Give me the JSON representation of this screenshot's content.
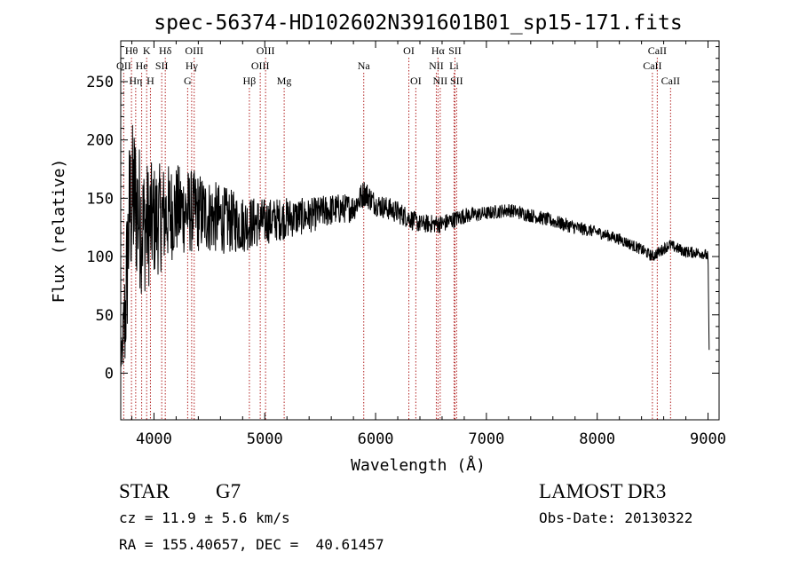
{
  "chart_data": {
    "type": "line",
    "title": "spec-56374-HD102602N391601B01_sp15-171.fits",
    "xlabel": "Wavelength (Å)",
    "ylabel": "Flux (relative)",
    "xlim": [
      3700,
      9100
    ],
    "ylim": [
      -40,
      285
    ],
    "xticks": [
      4000,
      5000,
      6000,
      7000,
      8000,
      9000
    ],
    "yticks": [
      0,
      50,
      100,
      150,
      200,
      250
    ],
    "xtick_labels": [
      "4000",
      "5000",
      "6000",
      "7000",
      "8000",
      "9000"
    ],
    "ytick_labels": [
      "0",
      "50",
      "100",
      "150",
      "200",
      "250"
    ],
    "spectrum_anchor_points": {
      "x": [
        3700,
        3740,
        3780,
        3820,
        3900,
        4000,
        4200,
        4400,
        4600,
        4800,
        5000,
        5200,
        5400,
        5600,
        5800,
        5900,
        6000,
        6200,
        6400,
        6600,
        6800,
        7000,
        7200,
        7500,
        7800,
        8000,
        8200,
        8400,
        8500,
        8650,
        8800,
        8950,
        9000,
        9010
      ],
      "y": [
        5,
        50,
        140,
        150,
        125,
        130,
        140,
        138,
        132,
        128,
        130,
        133,
        135,
        140,
        142,
        155,
        145,
        138,
        128,
        128,
        135,
        137,
        140,
        133,
        125,
        121,
        115,
        106,
        100,
        110,
        104,
        103,
        100,
        20
      ],
      "noise_amplitude": [
        0,
        60,
        70,
        70,
        60,
        50,
        40,
        35,
        30,
        25,
        20,
        18,
        15,
        14,
        12,
        12,
        10,
        10,
        8,
        8,
        7,
        6,
        6,
        6,
        6,
        5,
        5,
        5,
        5,
        5,
        5,
        5,
        5,
        0
      ]
    },
    "line_markers": [
      {
        "label": "Hθ",
        "x": 3797,
        "row": 0
      },
      {
        "label": "K",
        "x": 3934,
        "row": 0
      },
      {
        "label": "Hδ",
        "x": 4102,
        "row": 0
      },
      {
        "label": "OIII",
        "x": 4363,
        "row": 0
      },
      {
        "label": "OIII",
        "x": 5007,
        "row": 0
      },
      {
        "label": "OI",
        "x": 6300,
        "row": 0
      },
      {
        "label": "Hα",
        "x": 6563,
        "row": 0
      },
      {
        "label": "SII",
        "x": 6716,
        "row": 0
      },
      {
        "label": "CaII",
        "x": 8542,
        "row": 0
      },
      {
        "label": "OII",
        "x": 3727,
        "row": 1
      },
      {
        "label": "He",
        "x": 3889,
        "row": 1
      },
      {
        "label": "SII",
        "x": 4070,
        "row": 1
      },
      {
        "label": "Hγ",
        "x": 4340,
        "row": 1
      },
      {
        "label": "OIII",
        "x": 4959,
        "row": 1
      },
      {
        "label": "Na",
        "x": 5893,
        "row": 1
      },
      {
        "label": "NII",
        "x": 6548,
        "row": 1
      },
      {
        "label": "Li",
        "x": 6708,
        "row": 1
      },
      {
        "label": "CaII",
        "x": 8498,
        "row": 1
      },
      {
        "label": "Hη",
        "x": 3835,
        "row": 2
      },
      {
        "label": "H",
        "x": 3968,
        "row": 2
      },
      {
        "label": "G",
        "x": 4304,
        "row": 2
      },
      {
        "label": "Hβ",
        "x": 4861,
        "row": 2
      },
      {
        "label": "Mg",
        "x": 5175,
        "row": 2
      },
      {
        "label": "OI",
        "x": 6363,
        "row": 2
      },
      {
        "label": "NII",
        "x": 6583,
        "row": 2
      },
      {
        "label": "SII",
        "x": 6731,
        "row": 2
      },
      {
        "label": "CaII",
        "x": 8662,
        "row": 2
      }
    ]
  },
  "info": {
    "class": "STAR",
    "subclass": "G7",
    "survey": "LAMOST DR3",
    "cz": "cz = 11.9 ± 5.6 km/s",
    "obs_date": "Obs-Date: 20130322",
    "radec": "RA = 155.40657, DEC =  40.61457"
  },
  "colors": {
    "spectrum": "#000000",
    "marker_line": "#b22222",
    "axis": "#000000"
  }
}
